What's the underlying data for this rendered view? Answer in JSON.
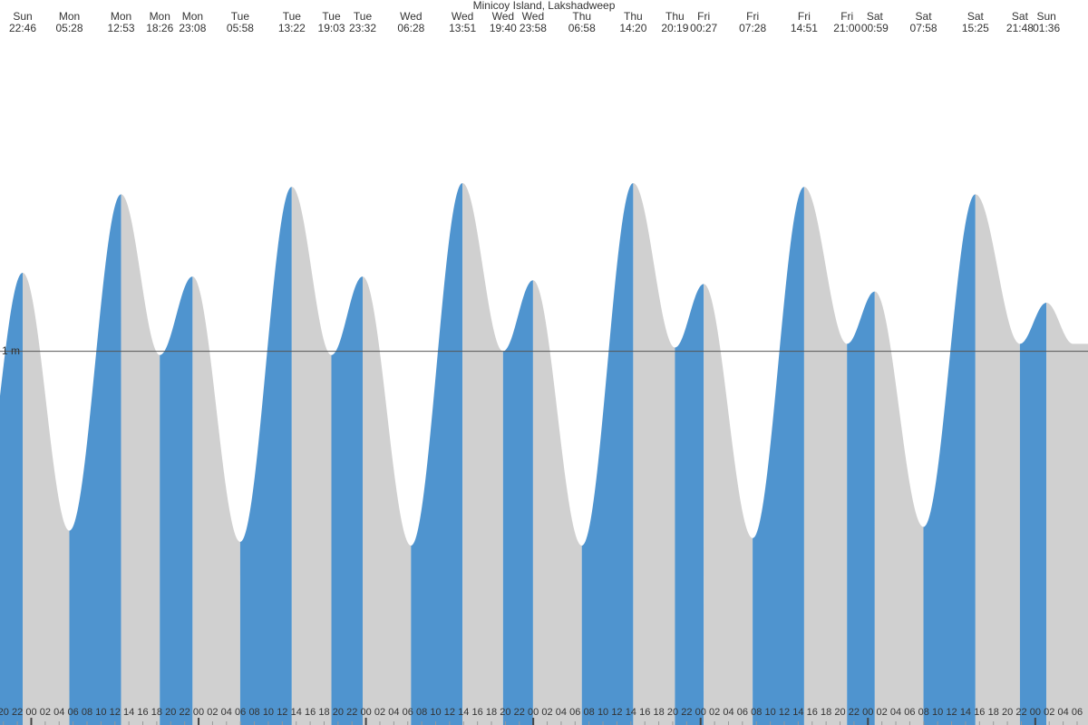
{
  "chart_data": {
    "type": "tide",
    "title": "Minicoy Island, Lakshadweep",
    "extremes": [
      {
        "day": "Sun",
        "time": "22:46",
        "height": 1.21
      },
      {
        "day": "Mon",
        "time": "05:28",
        "height": 0.52
      },
      {
        "day": "Mon",
        "time": "12:53",
        "height": 1.42
      },
      {
        "day": "Mon",
        "time": "18:26",
        "height": 0.99
      },
      {
        "day": "Mon",
        "time": "23:08",
        "height": 1.2
      },
      {
        "day": "Tue",
        "time": "05:58",
        "height": 0.49
      },
      {
        "day": "Tue",
        "time": "13:22",
        "height": 1.44
      },
      {
        "day": "Tue",
        "time": "19:03",
        "height": 0.99
      },
      {
        "day": "Tue",
        "time": "23:32",
        "height": 1.2
      },
      {
        "day": "Wed",
        "time": "06:28",
        "height": 0.48
      },
      {
        "day": "Wed",
        "time": "13:51",
        "height": 1.45
      },
      {
        "day": "Wed",
        "time": "19:40",
        "height": 1.0
      },
      {
        "day": "Wed",
        "time": "23:58",
        "height": 1.19
      },
      {
        "day": "Thu",
        "time": "06:58",
        "height": 0.48
      },
      {
        "day": "Thu",
        "time": "14:20",
        "height": 1.45
      },
      {
        "day": "Thu",
        "time": "20:19",
        "height": 1.01
      },
      {
        "day": "Fri",
        "time": "00:27",
        "height": 1.18
      },
      {
        "day": "Fri",
        "time": "07:28",
        "height": 0.5
      },
      {
        "day": "Fri",
        "time": "14:51",
        "height": 1.44
      },
      {
        "day": "Fri",
        "time": "21:00",
        "height": 1.02
      },
      {
        "day": "Sat",
        "time": "00:59",
        "height": 1.16
      },
      {
        "day": "Sat",
        "time": "07:58",
        "height": 0.53
      },
      {
        "day": "Sat",
        "time": "15:25",
        "height": 1.42
      },
      {
        "day": "Sat",
        "time": "21:48",
        "height": 1.02
      },
      {
        "day": "Sun",
        "time": "01:36",
        "height": 1.13
      }
    ],
    "ylim": [
      0,
      1.94
    ],
    "yticks": [
      {
        "value": 1,
        "label": "1 m"
      }
    ],
    "hour_labels": [
      "20",
      "22",
      "00",
      "02",
      "04",
      "06",
      "08",
      "10",
      "12",
      "14",
      "16",
      "18",
      "20",
      "22",
      "00",
      "02",
      "04",
      "06",
      "08",
      "10",
      "12",
      "14",
      "16",
      "18",
      "20",
      "22",
      "00",
      "02",
      "04",
      "06",
      "08",
      "10",
      "12",
      "14",
      "16",
      "18",
      "20",
      "22",
      "00",
      "02",
      "04",
      "06",
      "08",
      "10",
      "12",
      "14",
      "16",
      "18",
      "20",
      "22",
      "00",
      "02",
      "04",
      "06",
      "08",
      "10",
      "12",
      "14",
      "16",
      "18",
      "20",
      "22",
      "00",
      "02",
      "04",
      "06",
      "08",
      "10",
      "12",
      "14",
      "16",
      "18",
      "20",
      "22",
      "00",
      "02",
      "04",
      "06"
    ],
    "rising_color": "#4f94cf",
    "falling_color": "#d0d0d0"
  }
}
